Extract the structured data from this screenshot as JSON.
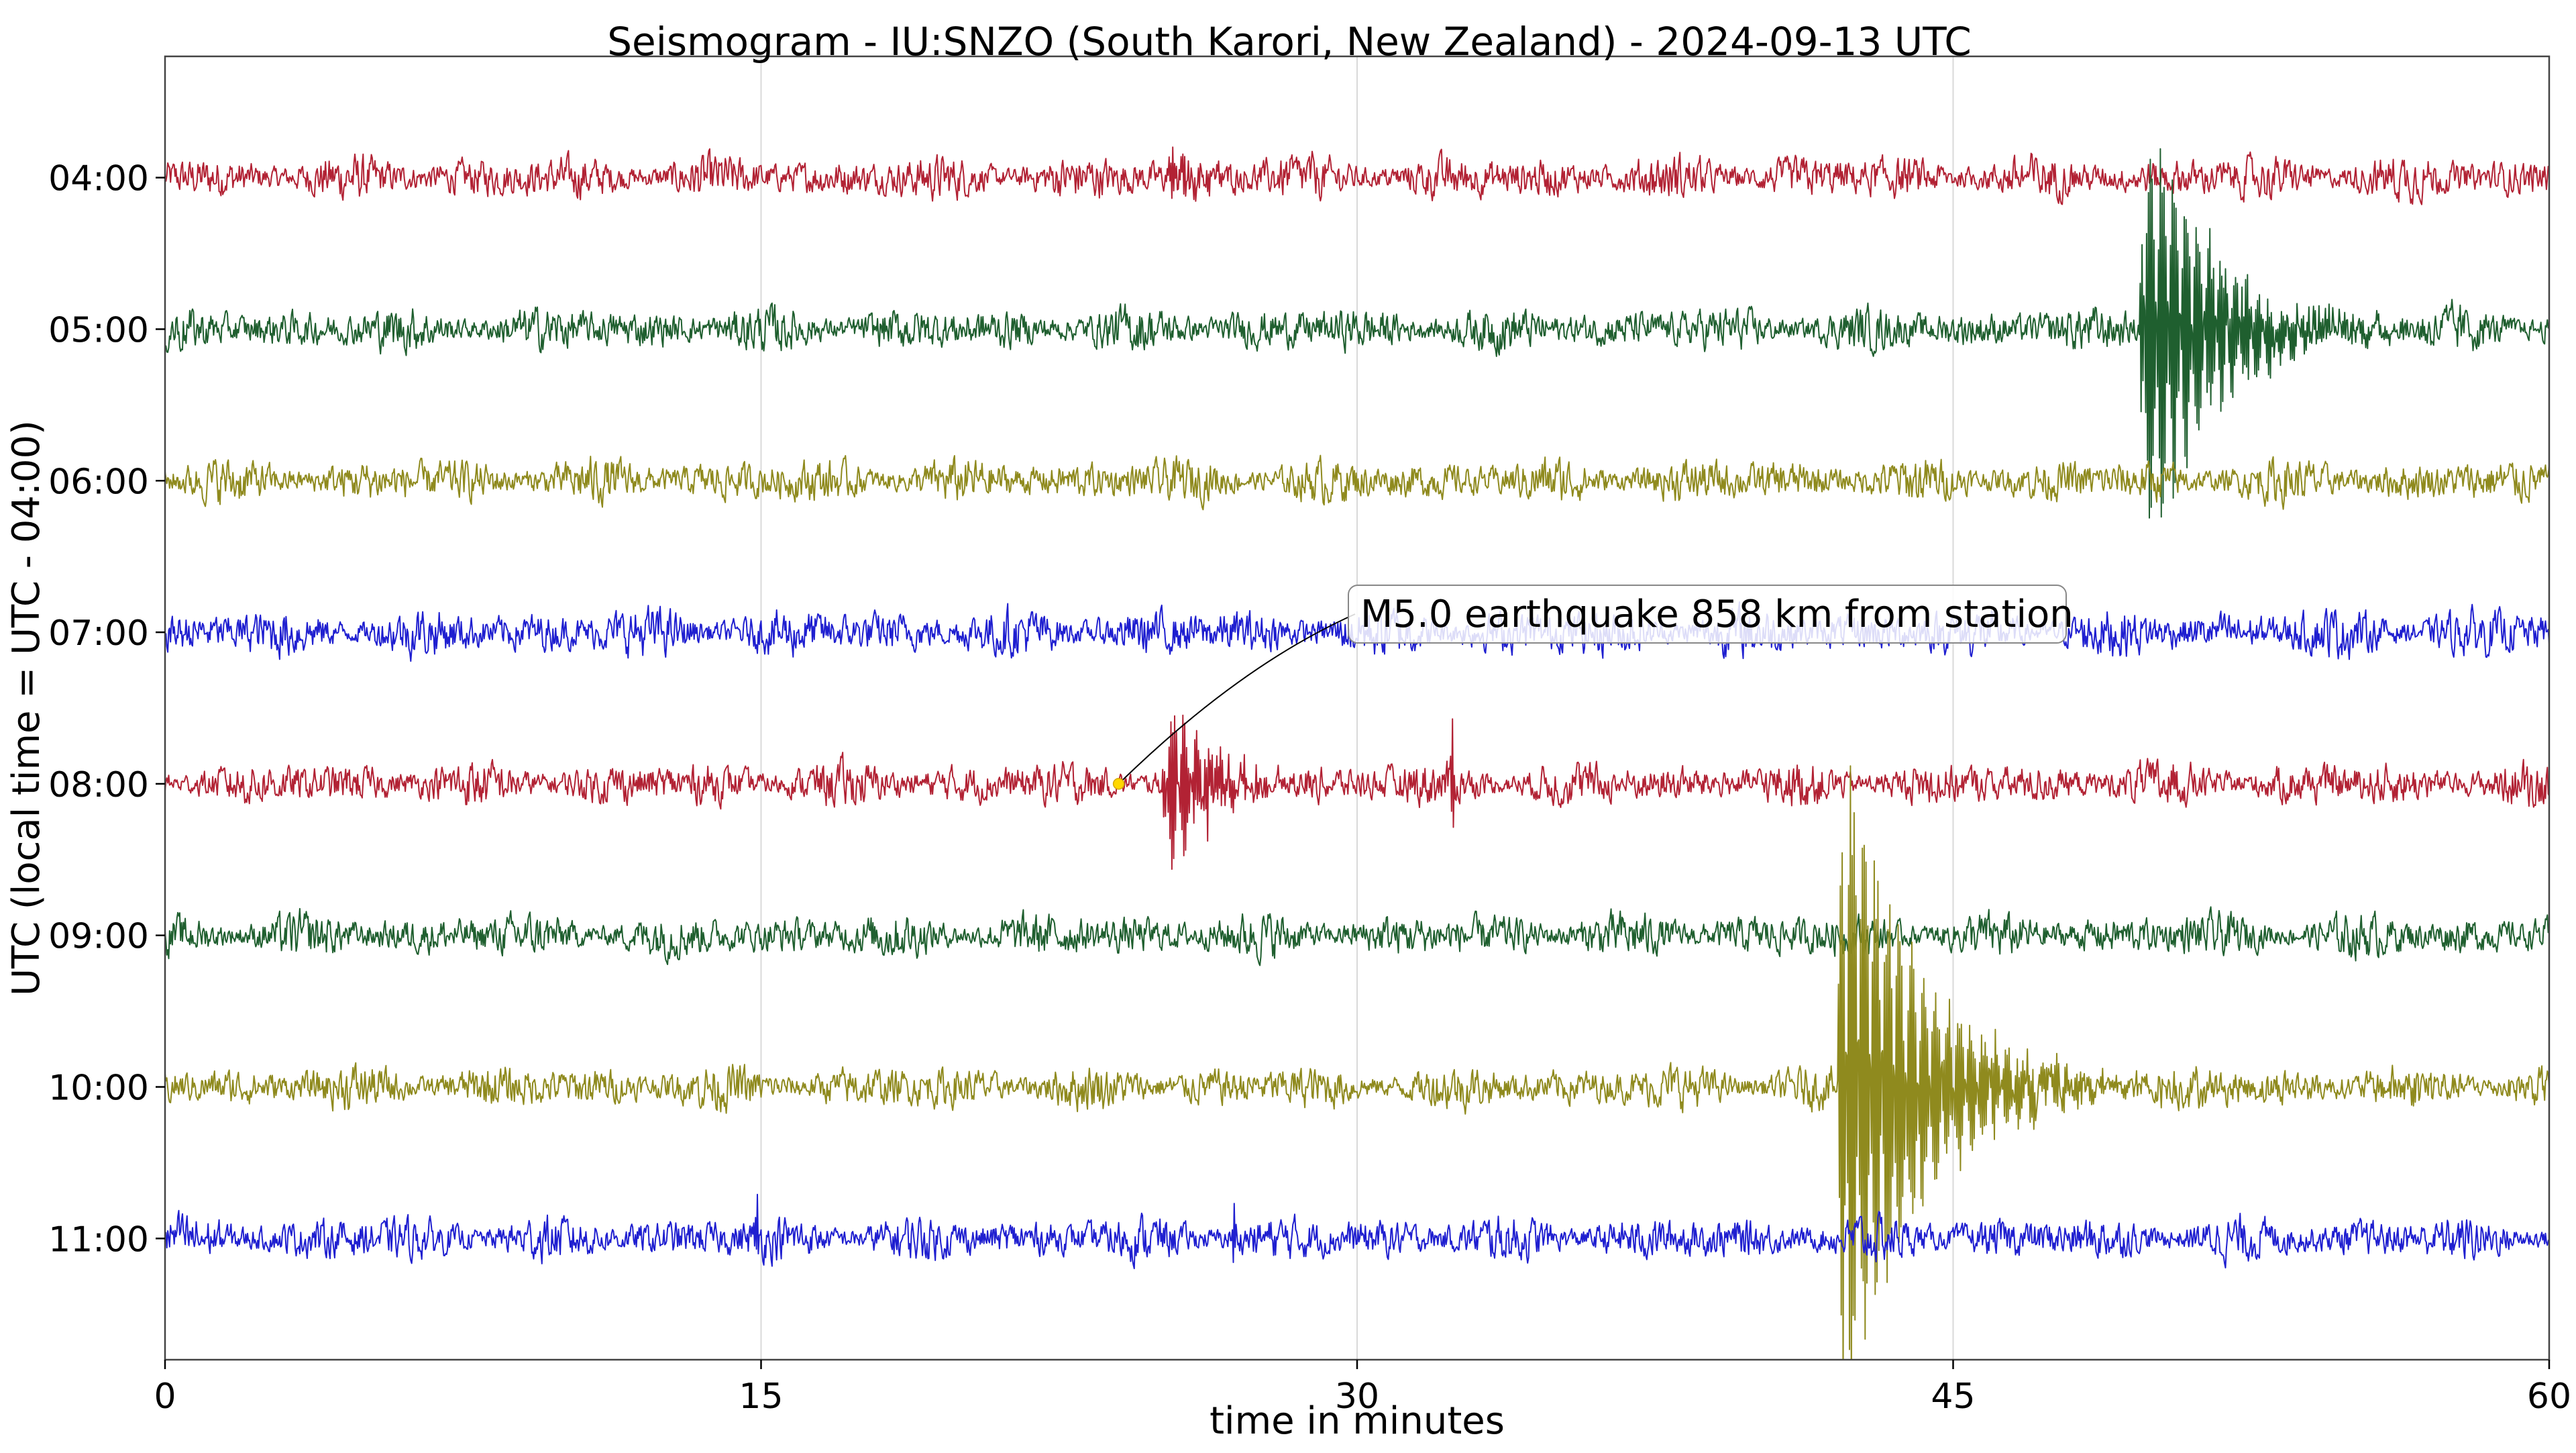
{
  "chart_data": {
    "type": "line",
    "title": "Seismogram - IU:SNZO (South Karori, New Zealand) - 2024-09-13 UTC",
    "xlabel": "time in minutes",
    "ylabel": "UTC (local time = UTC - 04:00)",
    "xlim": [
      0,
      60
    ],
    "x_ticks": [
      {
        "value": 0,
        "label": "0"
      },
      {
        "value": 15,
        "label": "15"
      },
      {
        "value": 30,
        "label": "30"
      },
      {
        "value": 45,
        "label": "45"
      },
      {
        "value": 60,
        "label": "60"
      }
    ],
    "grid": "vertical",
    "traces": [
      {
        "label": "04:00",
        "color": "#b22234",
        "amp": 0.11,
        "events": [
          {
            "t": 25.2,
            "amp": 0.18,
            "decay": 0.8
          }
        ],
        "spikes": []
      },
      {
        "label": "05:00",
        "color": "#1f5f2f",
        "amp": 0.11,
        "events": [
          {
            "t": 49.7,
            "amp": 1.95,
            "decay": 1.6
          }
        ],
        "spikes": []
      },
      {
        "label": "06:00",
        "color": "#8f8a1e",
        "amp": 0.11,
        "events": [],
        "spikes": []
      },
      {
        "label": "07:00",
        "color": "#1f1fd0",
        "amp": 0.12,
        "events": [],
        "spikes": []
      },
      {
        "label": "08:00",
        "color": "#b22234",
        "amp": 0.11,
        "events": [
          {
            "t": 25.1,
            "amp": 0.8,
            "decay": 0.9
          }
        ],
        "spikes": [
          {
            "t": 32.4,
            "amp": 0.35
          }
        ]
      },
      {
        "label": "09:00",
        "color": "#1f5f2f",
        "amp": 0.11,
        "events": [],
        "spikes": []
      },
      {
        "label": "10:00",
        "color": "#8f8a1e",
        "amp": 0.11,
        "events": [
          {
            "t": 42.1,
            "amp": 2.95,
            "decay": 1.8
          }
        ],
        "spikes": []
      },
      {
        "label": "11:00",
        "color": "#1f1fd0",
        "amp": 0.11,
        "events": [],
        "spikes": [
          {
            "t": 14.9,
            "amp": 0.22
          },
          {
            "t": 26.9,
            "amp": 0.22
          }
        ]
      }
    ],
    "annotation": {
      "text": "M5.0 earthquake 858 km from station",
      "trace": "08:00",
      "x": 24,
      "marker_color": "#ffd700"
    }
  }
}
